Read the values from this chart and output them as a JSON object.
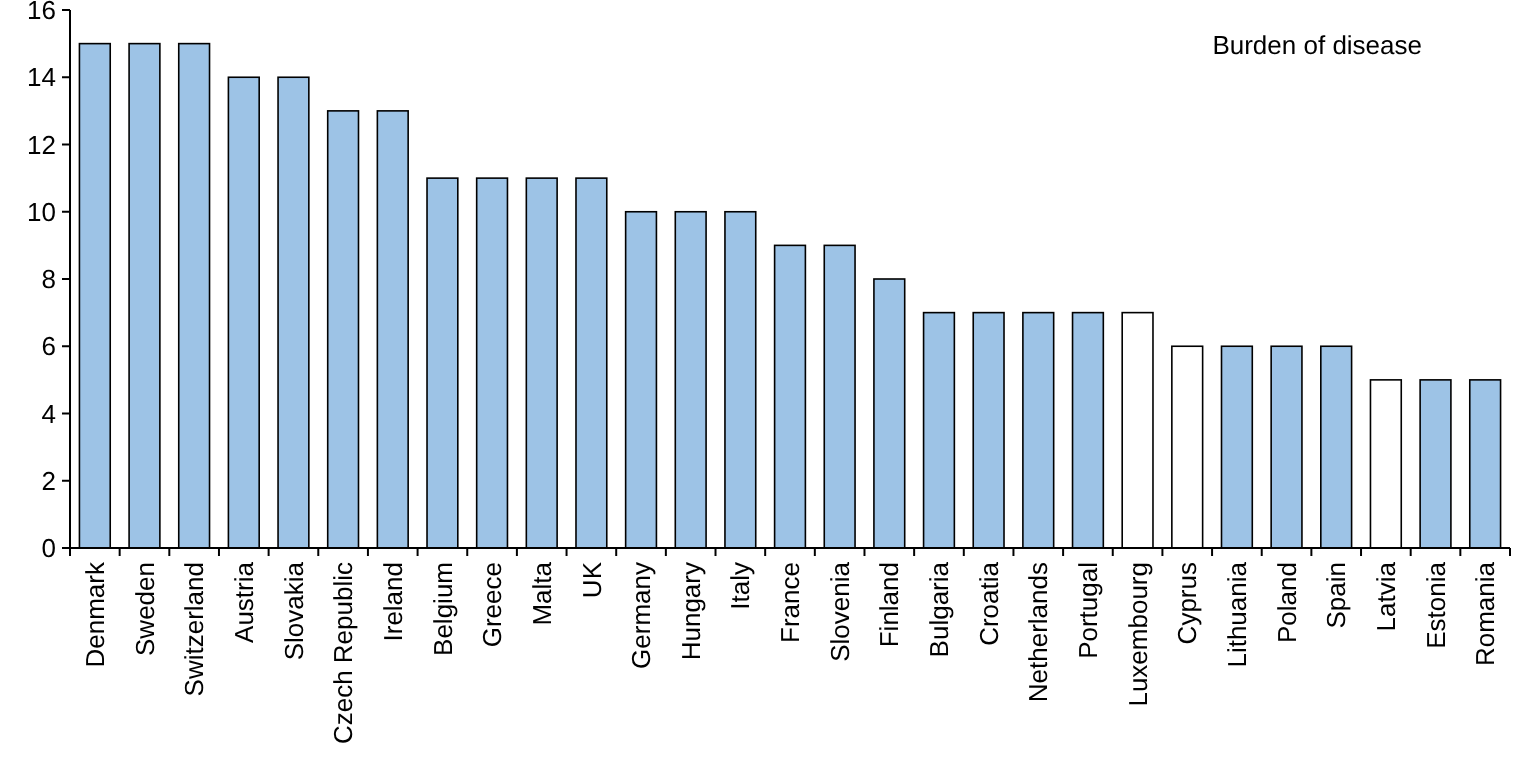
{
  "chart_data": {
    "type": "bar",
    "title": "Burden of disease",
    "categories": [
      "Denmark",
      "Sweden",
      "Switzerland",
      "Austria",
      "Slovakia",
      "Czech Republic",
      "Ireland",
      "Belgium",
      "Greece",
      "Malta",
      "UK",
      "Germany",
      "Hungary",
      "Italy",
      "France",
      "Slovenia",
      "Finland",
      "Bulgaria",
      "Croatia",
      "Netherlands",
      "Portugal",
      "Luxembourg",
      "Cyprus",
      "Lithuania",
      "Poland",
      "Spain",
      "Latvia",
      "Estonia",
      "Romania"
    ],
    "values": [
      15,
      15,
      15,
      14,
      14,
      13,
      13,
      11,
      11,
      11,
      11,
      10,
      10,
      10,
      9,
      9,
      8,
      7,
      7,
      7,
      7,
      7,
      6,
      6,
      6,
      6,
      5,
      5,
      5
    ],
    "colors": [
      "#9dc3e6",
      "#9dc3e6",
      "#9dc3e6",
      "#9dc3e6",
      "#9dc3e6",
      "#9dc3e6",
      "#9dc3e6",
      "#9dc3e6",
      "#9dc3e6",
      "#9dc3e6",
      "#9dc3e6",
      "#9dc3e6",
      "#9dc3e6",
      "#9dc3e6",
      "#9dc3e6",
      "#9dc3e6",
      "#9dc3e6",
      "#9dc3e6",
      "#9dc3e6",
      "#9dc3e6",
      "#9dc3e6",
      "#ffffff",
      "#ffffff",
      "#9dc3e6",
      "#9dc3e6",
      "#9dc3e6",
      "#ffffff",
      "#9dc3e6",
      "#9dc3e6"
    ],
    "ylim": [
      0,
      16
    ],
    "yticks": [
      0,
      2,
      4,
      6,
      8,
      10,
      12,
      14,
      16
    ],
    "grid": false
  }
}
